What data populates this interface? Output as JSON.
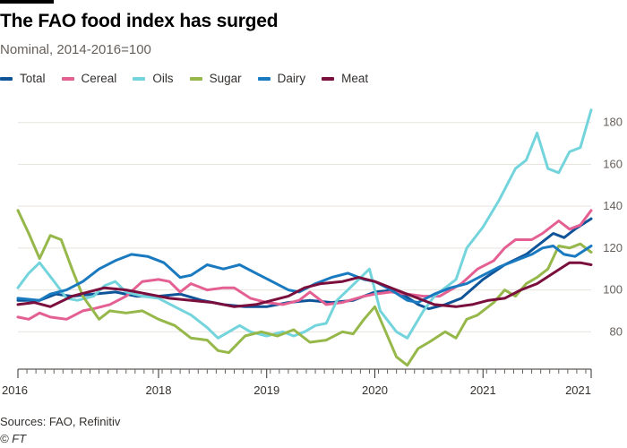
{
  "header": {
    "title": "The FAO food index has surged",
    "subtitle": "Nominal, 2014-2016=100"
  },
  "footer": {
    "source": "Sources: FAO, Refinitiv",
    "credit": "© FT"
  },
  "chart_data": {
    "type": "line",
    "title": "The FAO food index has surged",
    "subtitle": "Nominal, 2014-2016=100",
    "xlabel": "",
    "ylabel": "",
    "x_range": [
      2016.0,
      2021.3
    ],
    "ylim": [
      63,
      188
    ],
    "y_ticks": [
      80,
      100,
      120,
      140,
      160,
      180
    ],
    "x_ticks": [
      {
        "label": "2016",
        "value": 2016.0
      },
      {
        "label": "2018",
        "value": 2017.3
      },
      {
        "label": "2019",
        "value": 2018.3
      },
      {
        "label": "2020",
        "value": 2019.3
      },
      {
        "label": "2021",
        "value": 2020.3
      },
      {
        "label": "2021",
        "value": 2021.3
      }
    ],
    "grid": true,
    "legend_position": "top",
    "series": [
      {
        "name": "Total",
        "color": "#0f5499",
        "points": [
          [
            2016.0,
            95
          ],
          [
            2016.2,
            95
          ],
          [
            2016.35,
            98
          ],
          [
            2016.5,
            97
          ],
          [
            2016.7,
            98
          ],
          [
            2016.9,
            99
          ],
          [
            2017.1,
            97
          ],
          [
            2017.3,
            97
          ],
          [
            2017.5,
            98
          ],
          [
            2017.7,
            95
          ],
          [
            2017.9,
            93
          ],
          [
            2018.1,
            92
          ],
          [
            2018.3,
            92
          ],
          [
            2018.5,
            94
          ],
          [
            2018.7,
            95
          ],
          [
            2018.9,
            94
          ],
          [
            2019.1,
            95
          ],
          [
            2019.3,
            99
          ],
          [
            2019.5,
            100
          ],
          [
            2019.7,
            93
          ],
          [
            2019.8,
            91
          ],
          [
            2019.95,
            93
          ],
          [
            2020.1,
            96
          ],
          [
            2020.3,
            105
          ],
          [
            2020.5,
            112
          ],
          [
            2020.7,
            117
          ],
          [
            2020.85,
            123
          ],
          [
            2020.95,
            127
          ],
          [
            2021.05,
            125
          ],
          [
            2021.15,
            129
          ],
          [
            2021.3,
            134
          ]
        ]
      },
      {
        "name": "Cereal",
        "color": "#e45f92",
        "points": [
          [
            2016.0,
            87
          ],
          [
            2016.1,
            86
          ],
          [
            2016.2,
            89
          ],
          [
            2016.3,
            87
          ],
          [
            2016.45,
            86
          ],
          [
            2016.6,
            90
          ],
          [
            2016.7,
            91
          ],
          [
            2016.85,
            93
          ],
          [
            2017.0,
            97
          ],
          [
            2017.15,
            104
          ],
          [
            2017.3,
            105
          ],
          [
            2017.4,
            104
          ],
          [
            2017.5,
            99
          ],
          [
            2017.6,
            103
          ],
          [
            2017.75,
            100
          ],
          [
            2017.9,
            101
          ],
          [
            2018.0,
            101
          ],
          [
            2018.15,
            96
          ],
          [
            2018.3,
            94
          ],
          [
            2018.45,
            93
          ],
          [
            2018.6,
            95
          ],
          [
            2018.7,
            99
          ],
          [
            2018.85,
            93
          ],
          [
            2019.0,
            94
          ],
          [
            2019.2,
            97
          ],
          [
            2019.3,
            98
          ],
          [
            2019.45,
            99
          ],
          [
            2019.6,
            98
          ],
          [
            2019.75,
            97
          ],
          [
            2019.9,
            97
          ],
          [
            2020.0,
            100
          ],
          [
            2020.1,
            103
          ],
          [
            2020.25,
            110
          ],
          [
            2020.4,
            114
          ],
          [
            2020.5,
            120
          ],
          [
            2020.6,
            124
          ],
          [
            2020.75,
            124
          ],
          [
            2020.85,
            127
          ],
          [
            2021.0,
            133
          ],
          [
            2021.1,
            129
          ],
          [
            2021.2,
            131
          ],
          [
            2021.3,
            138
          ]
        ]
      },
      {
        "name": "Oils",
        "color": "#74d4dc",
        "points": [
          [
            2016.0,
            101
          ],
          [
            2016.1,
            108
          ],
          [
            2016.2,
            113
          ],
          [
            2016.35,
            103
          ],
          [
            2016.45,
            96
          ],
          [
            2016.55,
            95
          ],
          [
            2016.7,
            97
          ],
          [
            2016.8,
            102
          ],
          [
            2016.9,
            104
          ],
          [
            2017.0,
            99
          ],
          [
            2017.15,
            97
          ],
          [
            2017.3,
            96
          ],
          [
            2017.45,
            92
          ],
          [
            2017.6,
            88
          ],
          [
            2017.75,
            82
          ],
          [
            2017.85,
            77
          ],
          [
            2017.95,
            80
          ],
          [
            2018.05,
            83
          ],
          [
            2018.15,
            80
          ],
          [
            2018.3,
            78
          ],
          [
            2018.45,
            80
          ],
          [
            2018.55,
            78
          ],
          [
            2018.65,
            80
          ],
          [
            2018.75,
            83
          ],
          [
            2018.85,
            84
          ],
          [
            2018.95,
            95
          ],
          [
            2019.05,
            100
          ],
          [
            2019.15,
            105
          ],
          [
            2019.25,
            110
          ],
          [
            2019.35,
            90
          ],
          [
            2019.5,
            80
          ],
          [
            2019.6,
            77
          ],
          [
            2019.75,
            90
          ],
          [
            2019.85,
            97
          ],
          [
            2019.95,
            101
          ],
          [
            2020.05,
            105
          ],
          [
            2020.15,
            120
          ],
          [
            2020.3,
            130
          ],
          [
            2020.45,
            143
          ],
          [
            2020.6,
            158
          ],
          [
            2020.7,
            162
          ],
          [
            2020.8,
            175
          ],
          [
            2020.9,
            158
          ],
          [
            2021.0,
            156
          ],
          [
            2021.1,
            166
          ],
          [
            2021.2,
            168
          ],
          [
            2021.3,
            186
          ]
        ]
      },
      {
        "name": "Sugar",
        "color": "#96b84a",
        "points": [
          [
            2016.0,
            138
          ],
          [
            2016.1,
            127
          ],
          [
            2016.2,
            115
          ],
          [
            2016.3,
            126
          ],
          [
            2016.4,
            124
          ],
          [
            2016.5,
            110
          ],
          [
            2016.6,
            97
          ],
          [
            2016.75,
            86
          ],
          [
            2016.85,
            90
          ],
          [
            2017.0,
            89
          ],
          [
            2017.15,
            90
          ],
          [
            2017.3,
            86
          ],
          [
            2017.45,
            83
          ],
          [
            2017.6,
            77
          ],
          [
            2017.75,
            76
          ],
          [
            2017.85,
            71
          ],
          [
            2017.95,
            70
          ],
          [
            2018.1,
            78
          ],
          [
            2018.25,
            80
          ],
          [
            2018.4,
            78
          ],
          [
            2018.55,
            81
          ],
          [
            2018.7,
            75
          ],
          [
            2018.85,
            76
          ],
          [
            2019.0,
            80
          ],
          [
            2019.1,
            79
          ],
          [
            2019.2,
            86
          ],
          [
            2019.3,
            92
          ],
          [
            2019.4,
            80
          ],
          [
            2019.5,
            68
          ],
          [
            2019.6,
            64
          ],
          [
            2019.7,
            72
          ],
          [
            2019.8,
            75
          ],
          [
            2019.95,
            80
          ],
          [
            2020.05,
            77
          ],
          [
            2020.15,
            86
          ],
          [
            2020.25,
            88
          ],
          [
            2020.4,
            94
          ],
          [
            2020.5,
            100
          ],
          [
            2020.6,
            97
          ],
          [
            2020.7,
            103
          ],
          [
            2020.8,
            106
          ],
          [
            2020.9,
            110
          ],
          [
            2021.0,
            121
          ],
          [
            2021.1,
            120
          ],
          [
            2021.2,
            122
          ],
          [
            2021.3,
            118
          ]
        ]
      },
      {
        "name": "Dairy",
        "color": "#1a7ac0",
        "points": [
          [
            2016.0,
            96
          ],
          [
            2016.2,
            95
          ],
          [
            2016.3,
            98
          ],
          [
            2016.45,
            100
          ],
          [
            2016.6,
            104
          ],
          [
            2016.75,
            110
          ],
          [
            2016.9,
            114
          ],
          [
            2017.05,
            117
          ],
          [
            2017.2,
            116
          ],
          [
            2017.35,
            113
          ],
          [
            2017.5,
            106
          ],
          [
            2017.6,
            107
          ],
          [
            2017.75,
            112
          ],
          [
            2017.9,
            110
          ],
          [
            2018.05,
            112
          ],
          [
            2018.2,
            108
          ],
          [
            2018.35,
            104
          ],
          [
            2018.5,
            100
          ],
          [
            2018.6,
            99
          ],
          [
            2018.75,
            103
          ],
          [
            2018.9,
            106
          ],
          [
            2019.05,
            108
          ],
          [
            2019.2,
            105
          ],
          [
            2019.3,
            104
          ],
          [
            2019.45,
            100
          ],
          [
            2019.6,
            95
          ],
          [
            2019.7,
            94
          ],
          [
            2019.85,
            98
          ],
          [
            2020.0,
            101
          ],
          [
            2020.15,
            103
          ],
          [
            2020.3,
            107
          ],
          [
            2020.45,
            111
          ],
          [
            2020.6,
            114
          ],
          [
            2020.75,
            117
          ],
          [
            2020.85,
            120
          ],
          [
            2020.95,
            121
          ],
          [
            2021.05,
            117
          ],
          [
            2021.15,
            116
          ],
          [
            2021.3,
            121
          ]
        ]
      },
      {
        "name": "Meat",
        "color": "#7a0e3c",
        "points": [
          [
            2016.0,
            93
          ],
          [
            2016.15,
            94
          ],
          [
            2016.3,
            92
          ],
          [
            2016.5,
            97
          ],
          [
            2016.65,
            99
          ],
          [
            2016.8,
            101
          ],
          [
            2017.0,
            100
          ],
          [
            2017.2,
            98
          ],
          [
            2017.4,
            96
          ],
          [
            2017.6,
            95
          ],
          [
            2017.8,
            94
          ],
          [
            2018.0,
            92
          ],
          [
            2018.2,
            93
          ],
          [
            2018.35,
            95
          ],
          [
            2018.5,
            97
          ],
          [
            2018.65,
            101
          ],
          [
            2018.8,
            103
          ],
          [
            2019.0,
            104
          ],
          [
            2019.15,
            106
          ],
          [
            2019.3,
            104
          ],
          [
            2019.5,
            100
          ],
          [
            2019.65,
            97
          ],
          [
            2019.85,
            93
          ],
          [
            2020.05,
            92
          ],
          [
            2020.2,
            93
          ],
          [
            2020.35,
            95
          ],
          [
            2020.5,
            96
          ],
          [
            2020.65,
            100
          ],
          [
            2020.8,
            103
          ],
          [
            2020.95,
            108
          ],
          [
            2021.1,
            113
          ],
          [
            2021.2,
            113
          ],
          [
            2021.3,
            112
          ]
        ]
      }
    ]
  }
}
